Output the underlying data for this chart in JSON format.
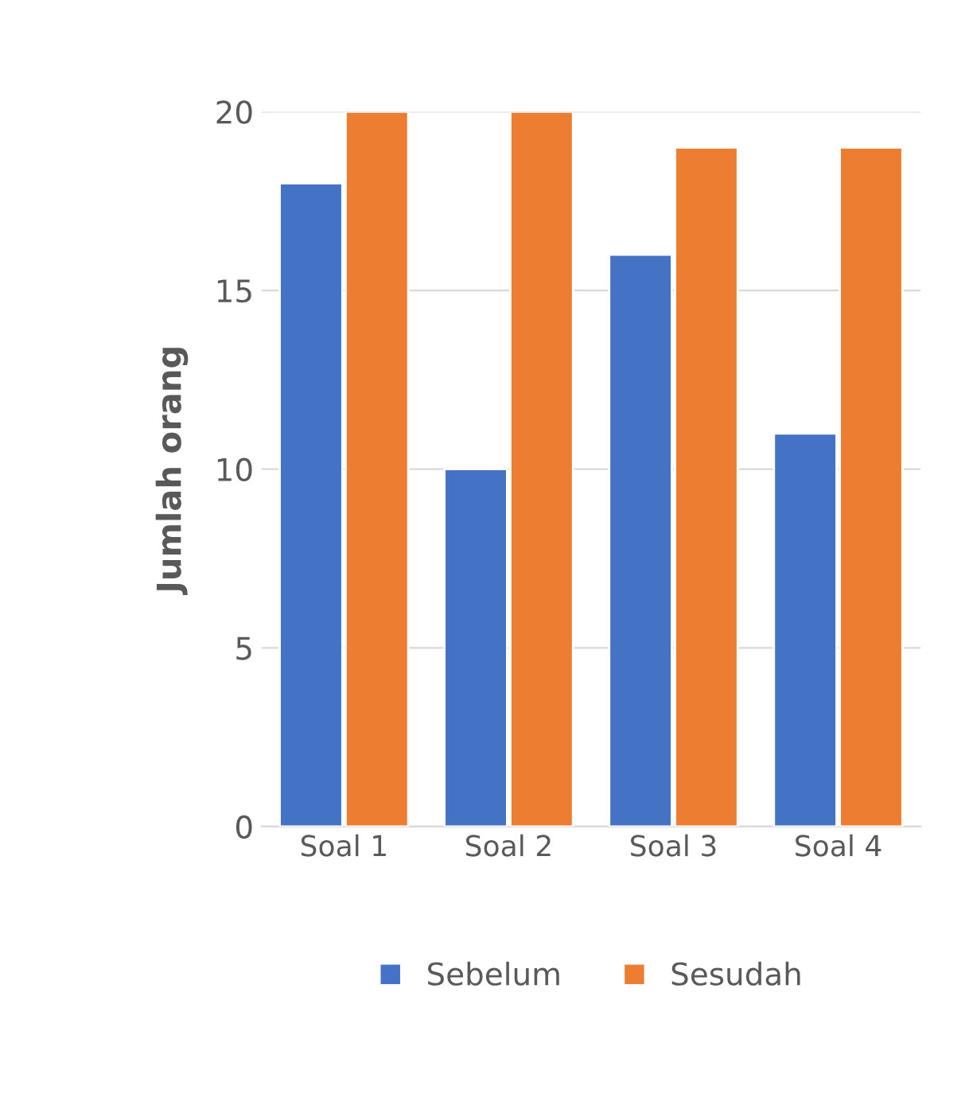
{
  "chart_data": {
    "type": "bar",
    "ylabel": "Jumlah orang",
    "categories": [
      "Soal 1",
      "Soal 2",
      "Soal 3",
      "Soal 4"
    ],
    "series": [
      {
        "name": "Sebelum",
        "color": "#4472c4",
        "values": [
          18,
          10,
          16,
          11
        ]
      },
      {
        "name": "Sesudah",
        "color": "#ed7d31",
        "values": [
          20,
          20,
          19,
          19
        ]
      }
    ],
    "ylim": [
      0,
      20
    ],
    "yticks": [
      0,
      5,
      10,
      15,
      20
    ],
    "grid": "y",
    "legend": "bottom"
  }
}
